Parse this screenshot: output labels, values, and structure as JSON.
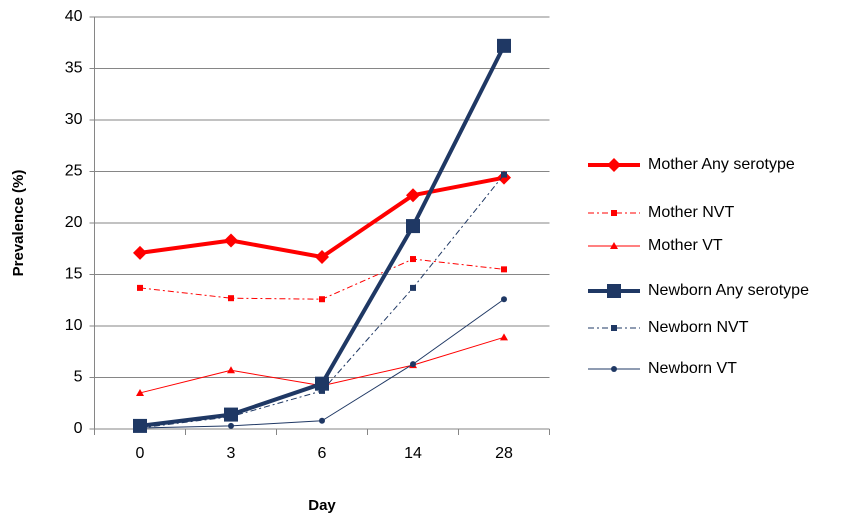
{
  "chart_data": {
    "type": "line",
    "x_label": "Day",
    "y_label": "Prevalence (%)",
    "categories": [
      "0",
      "3",
      "6",
      "14",
      "28"
    ],
    "ylim": [
      0,
      40
    ],
    "yticks": [
      0,
      5,
      10,
      15,
      20,
      25,
      30,
      35,
      40
    ],
    "grid": true,
    "legend": "right",
    "series": [
      {
        "name": "Mother Any serotype",
        "color": "#ff0000",
        "line_width": 4,
        "dash": "solid",
        "marker": "diamond",
        "values": [
          17.1,
          18.3,
          16.7,
          22.7,
          24.4
        ]
      },
      {
        "name": "Mother NVT",
        "color": "#ff0000",
        "line_width": 1,
        "dash": "dashdot",
        "marker": "square",
        "values": [
          13.7,
          12.7,
          12.6,
          16.5,
          15.5
        ]
      },
      {
        "name": "Mother VT",
        "color": "#ff0000",
        "line_width": 1,
        "dash": "solid",
        "marker": "triangle",
        "values": [
          3.5,
          5.7,
          4.2,
          6.2,
          8.9
        ]
      },
      {
        "name": "Newborn Any serotype",
        "color": "#1f3864",
        "line_width": 4,
        "dash": "solid",
        "marker": "big-square",
        "values": [
          0.3,
          1.4,
          4.4,
          19.7,
          37.2
        ]
      },
      {
        "name": "Newborn NVT",
        "color": "#1f3864",
        "line_width": 1,
        "dash": "dashdot",
        "marker": "square",
        "values": [
          0.1,
          1.2,
          3.7,
          13.7,
          24.7
        ]
      },
      {
        "name": "Newborn  VT",
        "color": "#1f3864",
        "line_width": 1,
        "dash": "solid",
        "marker": "circle",
        "values": [
          0.1,
          0.3,
          0.8,
          6.3,
          12.6
        ]
      }
    ]
  }
}
